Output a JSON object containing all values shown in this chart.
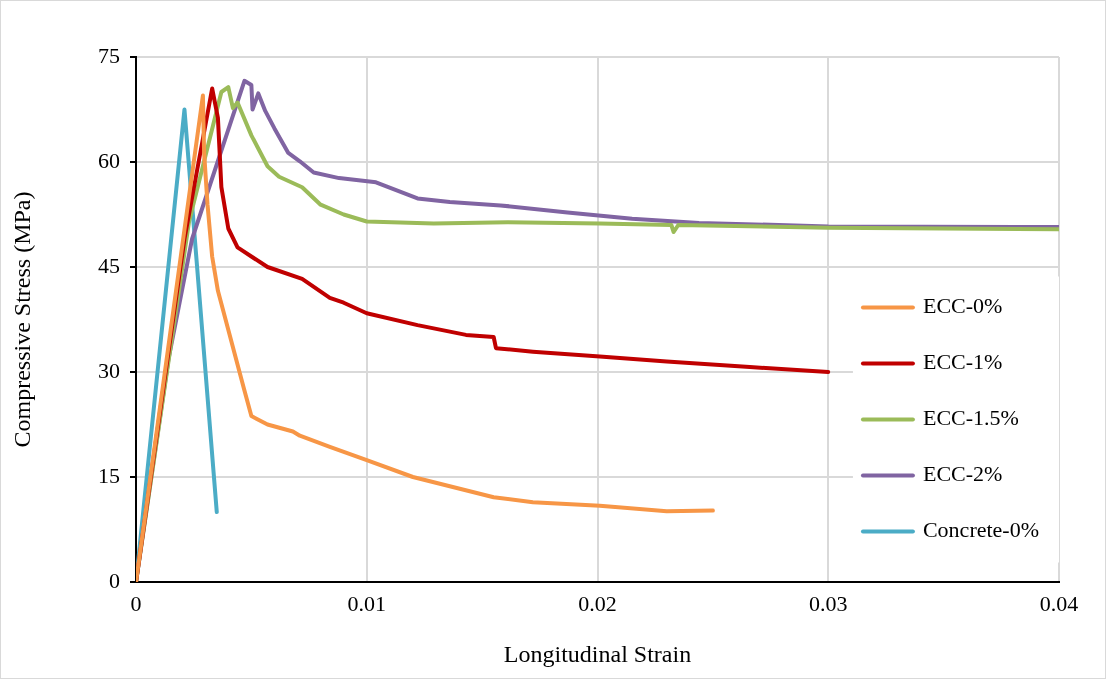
{
  "chart_data": {
    "type": "line",
    "xlabel": "Longitudinal Strain",
    "ylabel": "Compressive Stress (MPa)",
    "xlim": [
      0,
      0.04
    ],
    "xticks": [
      0,
      0.01,
      0.02,
      0.03,
      0.04
    ],
    "ylim": [
      0,
      75
    ],
    "yticks": [
      0,
      15,
      30,
      45,
      60,
      75
    ],
    "grid": true,
    "legend": "right",
    "marker": "none",
    "line_style": "solid",
    "series": [
      {
        "name": "ECC-0%",
        "color": "#f79646",
        "x": [
          0,
          0.0029,
          0.00295,
          0.0031,
          0.0033,
          0.00355,
          0.00467,
          0.005,
          0.0057,
          0.0068,
          0.0071,
          0.0084,
          0.01,
          0.012,
          0.0155,
          0.0172,
          0.0201,
          0.023,
          0.025
        ],
        "values": [
          0,
          69.5,
          61.4,
          53.9,
          46.5,
          41.6,
          27.7,
          23.7,
          22.5,
          21.5,
          20.9,
          19.3,
          17.4,
          15,
          12.1,
          11.4,
          10.9,
          10.1,
          10.2
        ]
      },
      {
        "name": "ECC-1%",
        "color": "#c00000",
        "x": [
          0,
          0.0021,
          0.0033,
          0.00355,
          0.0037,
          0.004,
          0.0044,
          0.005,
          0.0057,
          0.0072,
          0.0084,
          0.009,
          0.01,
          0.0122,
          0.0143,
          0.0155,
          0.0156,
          0.0172,
          0.0201,
          0.023,
          0.0266,
          0.03
        ],
        "values": [
          0,
          49,
          70.5,
          66.3,
          56.4,
          50.5,
          47.8,
          46.5,
          45,
          43.3,
          40.6,
          39.9,
          38.4,
          36.7,
          35.3,
          35,
          33.4,
          32.9,
          32.2,
          31.5,
          30.7,
          30
        ]
      },
      {
        "name": "ECC-1.5%",
        "color": "#9bbb59",
        "x": [
          0,
          0.0023,
          0.0037,
          0.004,
          0.0042,
          0.0044,
          0.005,
          0.0057,
          0.0062,
          0.0072,
          0.008,
          0.009,
          0.01,
          0.0129,
          0.0161,
          0.0201,
          0.0232,
          0.0233,
          0.0235,
          0.03,
          0.04
        ],
        "values": [
          0,
          51.5,
          70,
          70.7,
          67.7,
          68.5,
          63.8,
          59.4,
          57.9,
          56.4,
          53.9,
          52.5,
          51.5,
          51.2,
          51.4,
          51.2,
          51,
          50,
          51,
          50.6,
          50.4
        ]
      },
      {
        "name": "ECC-2%",
        "color": "#8064a2",
        "x": [
          0,
          0.0014,
          0.00243,
          0.0047,
          0.005,
          0.00505,
          0.0053,
          0.0056,
          0.006,
          0.0066,
          0.0071,
          0.0077,
          0.0088,
          0.0104,
          0.0122,
          0.0136,
          0.0158,
          0.0187,
          0.0215,
          0.0244,
          0.03,
          0.04
        ],
        "values": [
          0,
          31.7,
          49,
          71.6,
          71,
          67.5,
          69.8,
          67.3,
          64.8,
          61.3,
          60.1,
          58.5,
          57.7,
          57.1,
          54.8,
          54.3,
          53.8,
          52.8,
          51.9,
          51.3,
          50.8,
          50.7
        ]
      },
      {
        "name": "Concrete-0%",
        "color": "#4bacc6",
        "x": [
          0,
          0.0021,
          0.0035
        ],
        "values": [
          0,
          67.5,
          10
        ]
      }
    ]
  }
}
